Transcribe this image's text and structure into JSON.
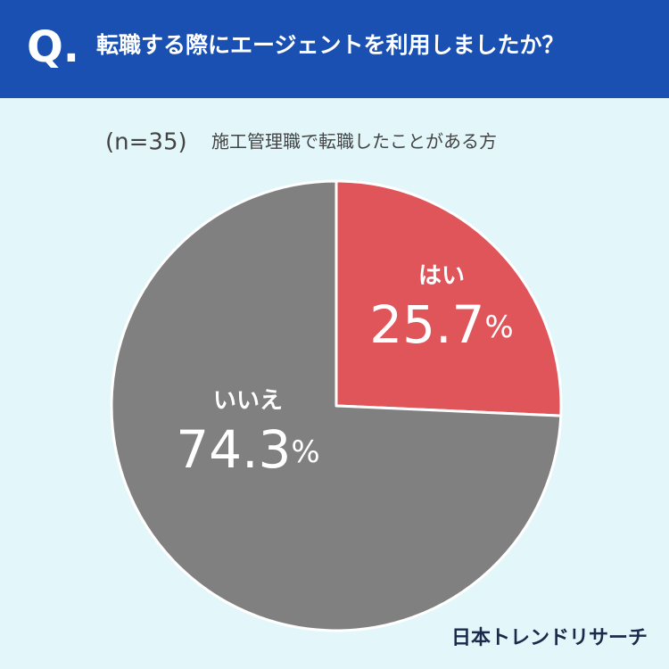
{
  "header": {
    "mark": "Q.",
    "question": "転職する際にエージェントを利用しましたか？"
  },
  "chart_data": {
    "type": "pie",
    "subtitle": {
      "sample": "(n=35)",
      "target": "施工管理職で転職したことがある方"
    },
    "categories": [
      "はい",
      "いいえ"
    ],
    "values": [
      25.7,
      74.3
    ],
    "value_labels": [
      "25.7%",
      "74.3%"
    ],
    "colors": [
      "#e0555a",
      "#808080"
    ]
  },
  "footer": {
    "brand": "日本トレンドリサーチ"
  }
}
